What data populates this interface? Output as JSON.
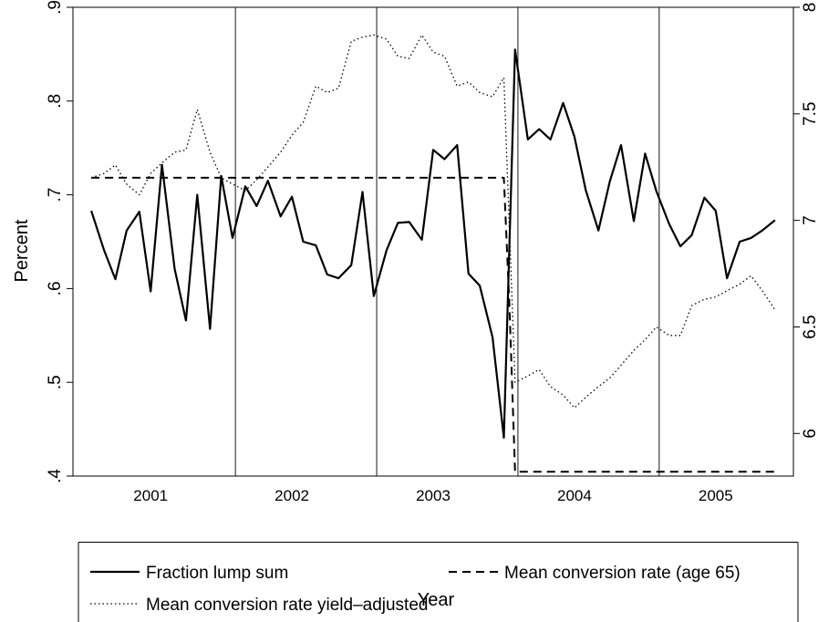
{
  "chart_data": {
    "type": "line",
    "xlabel": "Year",
    "ylabel": "Percent",
    "x_tick_labels": [
      "2001",
      "2002",
      "2003",
      "2004",
      "2005"
    ],
    "x_tick_positions": [
      2001,
      2002,
      2003,
      2004,
      2005
    ],
    "year_dividers": [
      2001.6,
      2002.6,
      2003.6,
      2004.6
    ],
    "xlim": [
      2000.45,
      2005.55
    ],
    "ylim_left": [
      0.4,
      0.9
    ],
    "ylim_right": [
      5.8,
      8.0
    ],
    "y_left_ticks": [
      0.4,
      0.5,
      0.6,
      0.7,
      0.8,
      0.9
    ],
    "y_left_tick_labels": [
      ".4",
      ".5",
      ".6",
      ".7",
      ".8",
      ".9"
    ],
    "y_right_ticks": [
      6,
      6.5,
      7,
      7.5,
      8
    ],
    "y_right_tick_labels": [
      "6",
      "6.5",
      "7",
      "7.5",
      "8"
    ],
    "grid": false,
    "legend_position": "bottom",
    "series": [
      {
        "name": "Fraction lump sum",
        "axis": "left",
        "style": "solid",
        "x": [
          2000.58,
          2000.67,
          2000.75,
          2000.83,
          2000.92,
          2001.0,
          2001.08,
          2001.17,
          2001.25,
          2001.33,
          2001.42,
          2001.5,
          2001.58,
          2001.67,
          2001.75,
          2001.83,
          2001.92,
          2002.0,
          2002.08,
          2002.17,
          2002.25,
          2002.33,
          2002.42,
          2002.5,
          2002.58,
          2002.67,
          2002.75,
          2002.83,
          2002.92,
          2003.0,
          2003.08,
          2003.17,
          2003.25,
          2003.33,
          2003.42,
          2003.5,
          2003.58,
          2003.67,
          2003.75,
          2003.83,
          2003.92,
          2004.0,
          2004.08,
          2004.17,
          2004.25,
          2004.33,
          2004.42,
          2004.5,
          2004.58,
          2004.67,
          2004.75,
          2004.83,
          2004.92,
          2005.0,
          2005.08,
          2005.17,
          2005.25,
          2005.33,
          2005.42
        ],
        "y": [
          0.683,
          0.641,
          0.61,
          0.662,
          0.682,
          0.597,
          0.732,
          0.621,
          0.566,
          0.7,
          0.557,
          0.72,
          0.654,
          0.709,
          0.688,
          0.715,
          0.677,
          0.698,
          0.65,
          0.646,
          0.615,
          0.611,
          0.625,
          0.703,
          0.592,
          0.641,
          0.67,
          0.671,
          0.652,
          0.748,
          0.738,
          0.753,
          0.616,
          0.603,
          0.548,
          0.441,
          0.855,
          0.759,
          0.77,
          0.759,
          0.798,
          0.762,
          0.705,
          0.662,
          0.714,
          0.753,
          0.672,
          0.744,
          0.704,
          0.669,
          0.645,
          0.657,
          0.697,
          0.683,
          0.611,
          0.65,
          0.654,
          0.662,
          0.673
        ]
      },
      {
        "name": "Mean conversion rate (age 65)",
        "axis": "right",
        "style": "dashed",
        "x": [
          2000.58,
          2003.5,
          2003.54,
          2003.58,
          2005.42
        ],
        "y": [
          7.2,
          7.2,
          6.6,
          5.82,
          5.82
        ]
      },
      {
        "name": "Mean conversion rate yield–adjusted",
        "axis": "right",
        "style": "dotted",
        "x": [
          2000.58,
          2000.67,
          2000.75,
          2000.83,
          2000.92,
          2001.0,
          2001.08,
          2001.17,
          2001.25,
          2001.33,
          2001.42,
          2001.5,
          2001.58,
          2001.67,
          2001.75,
          2001.83,
          2001.92,
          2002.0,
          2002.08,
          2002.17,
          2002.25,
          2002.33,
          2002.42,
          2002.5,
          2002.58,
          2002.67,
          2002.75,
          2002.83,
          2002.92,
          2003.0,
          2003.08,
          2003.17,
          2003.25,
          2003.33,
          2003.42,
          2003.5,
          2003.58,
          2003.67,
          2003.75,
          2003.83,
          2003.92,
          2004.0,
          2004.08,
          2004.17,
          2004.25,
          2004.33,
          2004.42,
          2004.5,
          2004.58,
          2004.67,
          2004.75,
          2004.83,
          2004.92,
          2005.0,
          2005.08,
          2005.17,
          2005.25,
          2005.33,
          2005.42
        ],
        "y": [
          7.2,
          7.22,
          7.26,
          7.17,
          7.12,
          7.22,
          7.27,
          7.32,
          7.33,
          7.52,
          7.32,
          7.2,
          7.17,
          7.14,
          7.19,
          7.25,
          7.32,
          7.4,
          7.46,
          7.63,
          7.6,
          7.62,
          7.84,
          7.86,
          7.87,
          7.85,
          7.77,
          7.76,
          7.87,
          7.79,
          7.77,
          7.63,
          7.65,
          7.6,
          7.58,
          7.67,
          6.24,
          6.27,
          6.3,
          6.22,
          6.18,
          6.12,
          6.17,
          6.22,
          6.26,
          6.32,
          6.39,
          6.44,
          6.5,
          6.46,
          6.46,
          6.6,
          6.63,
          6.64,
          6.67,
          6.7,
          6.74,
          6.67,
          6.58
        ]
      }
    ]
  }
}
